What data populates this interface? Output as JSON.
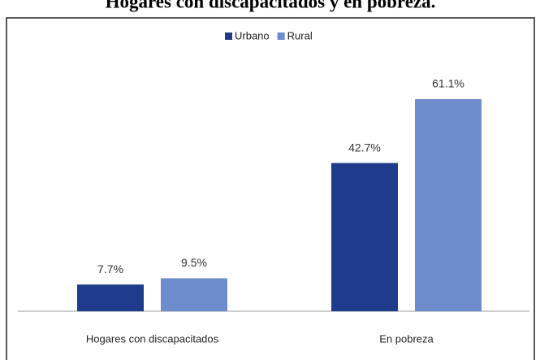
{
  "chart_data": {
    "type": "bar",
    "title": "Hogares con discapacitados y en pobreza.",
    "categories": [
      "Hogares con discapacitados",
      "En pobreza"
    ],
    "series": [
      {
        "name": "Urbano",
        "color": "#1f3c8c",
        "values": [
          7.7,
          42.7
        ],
        "value_labels": [
          "7.7%",
          "42.7%"
        ]
      },
      {
        "name": "Rural",
        "color": "#6d8ccb",
        "values": [
          9.5,
          61.1
        ],
        "value_labels": [
          "9.5%",
          "61.1%"
        ]
      }
    ],
    "legend": "top"
  }
}
